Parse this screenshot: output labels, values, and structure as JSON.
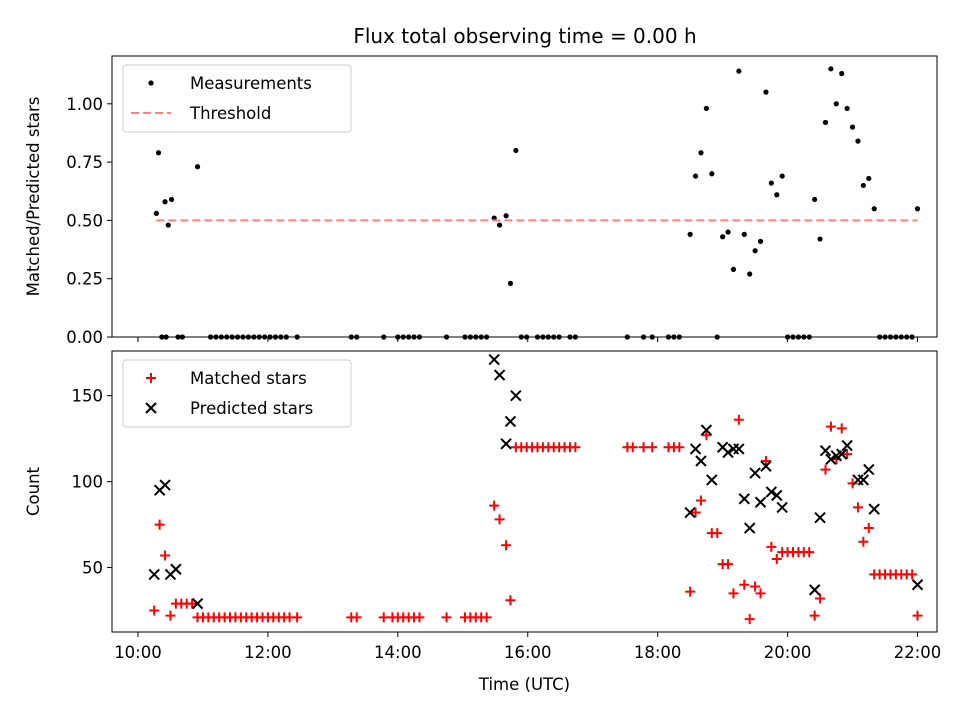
{
  "title": "Flux total observing time = 0.00 h",
  "colors": {
    "measurement": "#000000",
    "threshold": "#ff7f7f",
    "matched": "#ff0000",
    "predicted": "#000000"
  },
  "chart_data": [
    {
      "type": "scatter",
      "ylabel": "Matched/Predicted stars",
      "xlim": [
        "10:00",
        "22:00"
      ],
      "ylim": [
        0,
        1.2
      ],
      "yticks": [
        "0.00",
        "0.25",
        "0.50",
        "0.75",
        "1.00"
      ],
      "legend": {
        "position": "upper-left"
      },
      "series": [
        {
          "name": "Measurements",
          "marker": "dot",
          "points": [
            [
              "10:17",
              0.53
            ],
            [
              "10:19",
              0.79
            ],
            [
              "10:25",
              0.58
            ],
            [
              "10:28",
              0.48
            ],
            [
              "10:31",
              0.59
            ],
            [
              "10:22",
              0.0
            ],
            [
              "10:26",
              0.0
            ],
            [
              "10:55",
              0.73
            ],
            [
              "10:37",
              0.0
            ],
            [
              "10:41",
              0.0
            ],
            [
              "11:07",
              0.0
            ],
            [
              "11:12",
              0.0
            ],
            [
              "11:17",
              0.0
            ],
            [
              "11:22",
              0.0
            ],
            [
              "11:27",
              0.0
            ],
            [
              "11:32",
              0.0
            ],
            [
              "11:37",
              0.0
            ],
            [
              "11:42",
              0.0
            ],
            [
              "11:47",
              0.0
            ],
            [
              "11:52",
              0.0
            ],
            [
              "11:57",
              0.0
            ],
            [
              "12:02",
              0.0
            ],
            [
              "12:07",
              0.0
            ],
            [
              "12:12",
              0.0
            ],
            [
              "12:17",
              0.0
            ],
            [
              "12:27",
              0.0
            ],
            [
              "13:17",
              0.0
            ],
            [
              "13:22",
              0.0
            ],
            [
              "13:47",
              0.0
            ],
            [
              "14:00",
              0.0
            ],
            [
              "14:05",
              0.0
            ],
            [
              "14:10",
              0.0
            ],
            [
              "14:15",
              0.0
            ],
            [
              "14:20",
              0.0
            ],
            [
              "14:45",
              0.0
            ],
            [
              "15:02",
              0.0
            ],
            [
              "15:07",
              0.0
            ],
            [
              "15:12",
              0.0
            ],
            [
              "15:17",
              0.0
            ],
            [
              "15:22",
              0.0
            ],
            [
              "15:29",
              0.51
            ],
            [
              "15:34",
              0.48
            ],
            [
              "15:40",
              0.52
            ],
            [
              "15:44",
              0.23
            ],
            [
              "15:49",
              0.8
            ],
            [
              "15:54",
              0.0
            ],
            [
              "15:59",
              0.0
            ],
            [
              "16:09",
              0.0
            ],
            [
              "16:14",
              0.0
            ],
            [
              "16:19",
              0.0
            ],
            [
              "16:24",
              0.0
            ],
            [
              "16:29",
              0.0
            ],
            [
              "16:39",
              0.0
            ],
            [
              "16:44",
              0.0
            ],
            [
              "17:32",
              0.0
            ],
            [
              "17:47",
              0.0
            ],
            [
              "17:55",
              0.0
            ],
            [
              "18:10",
              0.0
            ],
            [
              "18:15",
              0.0
            ],
            [
              "18:20",
              0.0
            ],
            [
              "18:30",
              0.44
            ],
            [
              "18:35",
              0.69
            ],
            [
              "18:40",
              0.79
            ],
            [
              "18:45",
              0.98
            ],
            [
              "18:50",
              0.7
            ],
            [
              "18:55",
              0.0
            ],
            [
              "19:00",
              0.43
            ],
            [
              "19:05",
              0.45
            ],
            [
              "19:10",
              0.29
            ],
            [
              "19:15",
              1.14
            ],
            [
              "19:20",
              0.44
            ],
            [
              "19:25",
              0.27
            ],
            [
              "19:30",
              0.37
            ],
            [
              "19:35",
              0.41
            ],
            [
              "19:40",
              1.05
            ],
            [
              "19:45",
              0.66
            ],
            [
              "19:50",
              0.61
            ],
            [
              "19:55",
              0.69
            ],
            [
              "20:00",
              0.0
            ],
            [
              "20:05",
              0.0
            ],
            [
              "20:10",
              0.0
            ],
            [
              "20:15",
              0.0
            ],
            [
              "20:20",
              0.0
            ],
            [
              "20:25",
              0.59
            ],
            [
              "20:30",
              0.42
            ],
            [
              "20:35",
              0.92
            ],
            [
              "20:40",
              1.15
            ],
            [
              "20:45",
              1.0
            ],
            [
              "20:50",
              1.13
            ],
            [
              "20:55",
              0.98
            ],
            [
              "21:00",
              0.9
            ],
            [
              "21:05",
              0.84
            ],
            [
              "21:10",
              0.65
            ],
            [
              "21:15",
              0.68
            ],
            [
              "21:20",
              0.55
            ],
            [
              "21:25",
              0.0
            ],
            [
              "21:30",
              0.0
            ],
            [
              "21:35",
              0.0
            ],
            [
              "21:40",
              0.0
            ],
            [
              "21:45",
              0.0
            ],
            [
              "21:50",
              0.0
            ],
            [
              "21:55",
              0.0
            ],
            [
              "22:00",
              0.55
            ]
          ]
        },
        {
          "name": "Threshold",
          "style": "dashed",
          "points": [
            [
              "10:17",
              0.5
            ],
            [
              "22:00",
              0.5
            ]
          ]
        }
      ]
    },
    {
      "type": "scatter",
      "xlabel": "Time (UTC)",
      "ylabel": "Count",
      "xlim": [
        "10:00",
        "22:00"
      ],
      "ylim": [
        10,
        175
      ],
      "xticks": [
        "10:00",
        "12:00",
        "14:00",
        "16:00",
        "18:00",
        "20:00",
        "22:00"
      ],
      "yticks": [
        "50",
        "100",
        "150"
      ],
      "legend": {
        "position": "upper-left"
      },
      "series": [
        {
          "name": "Matched stars",
          "marker": "plus",
          "points": [
            [
              "10:15",
              25
            ],
            [
              "10:20",
              75
            ],
            [
              "10:25",
              57
            ],
            [
              "10:30",
              22
            ],
            [
              "10:35",
              29
            ],
            [
              "10:40",
              29
            ],
            [
              "10:45",
              29
            ],
            [
              "10:50",
              29
            ],
            [
              "10:55",
              21
            ],
            [
              "11:00",
              21
            ],
            [
              "11:05",
              21
            ],
            [
              "11:10",
              21
            ],
            [
              "11:15",
              21
            ],
            [
              "11:20",
              21
            ],
            [
              "11:25",
              21
            ],
            [
              "11:30",
              21
            ],
            [
              "11:35",
              21
            ],
            [
              "11:40",
              21
            ],
            [
              "11:45",
              21
            ],
            [
              "11:50",
              21
            ],
            [
              "11:55",
              21
            ],
            [
              "12:00",
              21
            ],
            [
              "12:05",
              21
            ],
            [
              "12:10",
              21
            ],
            [
              "12:15",
              21
            ],
            [
              "12:20",
              21
            ],
            [
              "12:27",
              21
            ],
            [
              "13:17",
              21
            ],
            [
              "13:22",
              21
            ],
            [
              "13:47",
              21
            ],
            [
              "13:55",
              21
            ],
            [
              "14:00",
              21
            ],
            [
              "14:05",
              21
            ],
            [
              "14:10",
              21
            ],
            [
              "14:15",
              21
            ],
            [
              "14:20",
              21
            ],
            [
              "14:45",
              21
            ],
            [
              "15:02",
              21
            ],
            [
              "15:07",
              21
            ],
            [
              "15:12",
              21
            ],
            [
              "15:17",
              21
            ],
            [
              "15:22",
              21
            ],
            [
              "15:29",
              86
            ],
            [
              "15:34",
              78
            ],
            [
              "15:40",
              63
            ],
            [
              "15:44",
              31
            ],
            [
              "15:49",
              120
            ],
            [
              "15:54",
              120
            ],
            [
              "15:59",
              120
            ],
            [
              "16:04",
              120
            ],
            [
              "16:09",
              120
            ],
            [
              "16:14",
              120
            ],
            [
              "16:19",
              120
            ],
            [
              "16:24",
              120
            ],
            [
              "16:29",
              120
            ],
            [
              "16:34",
              120
            ],
            [
              "16:39",
              120
            ],
            [
              "16:44",
              120
            ],
            [
              "17:32",
              120
            ],
            [
              "17:37",
              120
            ],
            [
              "17:47",
              120
            ],
            [
              "17:55",
              120
            ],
            [
              "18:10",
              120
            ],
            [
              "18:15",
              120
            ],
            [
              "18:20",
              120
            ],
            [
              "18:30",
              36
            ],
            [
              "18:35",
              82
            ],
            [
              "18:40",
              89
            ],
            [
              "18:45",
              127
            ],
            [
              "18:50",
              70
            ],
            [
              "18:55",
              70
            ],
            [
              "19:00",
              52
            ],
            [
              "19:05",
              52
            ],
            [
              "19:10",
              35
            ],
            [
              "19:15",
              136
            ],
            [
              "19:20",
              40
            ],
            [
              "19:25",
              20
            ],
            [
              "19:30",
              39
            ],
            [
              "19:35",
              35
            ],
            [
              "19:40",
              112
            ],
            [
              "19:45",
              62
            ],
            [
              "19:50",
              55
            ],
            [
              "19:55",
              59
            ],
            [
              "20:00",
              59
            ],
            [
              "20:05",
              59
            ],
            [
              "20:10",
              59
            ],
            [
              "20:15",
              59
            ],
            [
              "20:20",
              59
            ],
            [
              "20:25",
              22
            ],
            [
              "20:30",
              32
            ],
            [
              "20:35",
              107
            ],
            [
              "20:40",
              132
            ],
            [
              "20:45",
              113
            ],
            [
              "20:50",
              131
            ],
            [
              "20:55",
              116
            ],
            [
              "21:00",
              99
            ],
            [
              "21:05",
              85
            ],
            [
              "21:10",
              65
            ],
            [
              "21:15",
              73
            ],
            [
              "21:20",
              46
            ],
            [
              "21:25",
              46
            ],
            [
              "21:30",
              46
            ],
            [
              "21:35",
              46
            ],
            [
              "21:40",
              46
            ],
            [
              "21:45",
              46
            ],
            [
              "21:50",
              46
            ],
            [
              "21:55",
              46
            ],
            [
              "22:00",
              22
            ]
          ]
        },
        {
          "name": "Predicted stars",
          "marker": "x",
          "points": [
            [
              "10:15",
              46
            ],
            [
              "10:20",
              95
            ],
            [
              "10:25",
              98
            ],
            [
              "10:30",
              46
            ],
            [
              "10:35",
              49
            ],
            [
              "10:55",
              29
            ],
            [
              "15:29",
              171
            ],
            [
              "15:34",
              162
            ],
            [
              "15:40",
              122
            ],
            [
              "15:44",
              135
            ],
            [
              "15:49",
              150
            ],
            [
              "18:30",
              82
            ],
            [
              "18:35",
              119
            ],
            [
              "18:40",
              112
            ],
            [
              "18:45",
              130
            ],
            [
              "18:50",
              101
            ],
            [
              "19:00",
              120
            ],
            [
              "19:05",
              117
            ],
            [
              "19:10",
              119
            ],
            [
              "19:15",
              119
            ],
            [
              "19:20",
              90
            ],
            [
              "19:25",
              73
            ],
            [
              "19:30",
              105
            ],
            [
              "19:35",
              88
            ],
            [
              "19:40",
              109
            ],
            [
              "19:45",
              94
            ],
            [
              "19:50",
              92
            ],
            [
              "19:55",
              85
            ],
            [
              "20:25",
              37
            ],
            [
              "20:30",
              79
            ],
            [
              "20:35",
              118
            ],
            [
              "20:40",
              113
            ],
            [
              "20:45",
              115
            ],
            [
              "20:50",
              116
            ],
            [
              "20:55",
              121
            ],
            [
              "21:05",
              101
            ],
            [
              "21:10",
              101
            ],
            [
              "21:15",
              107
            ],
            [
              "21:20",
              84
            ],
            [
              "22:00",
              40
            ]
          ]
        }
      ]
    }
  ]
}
